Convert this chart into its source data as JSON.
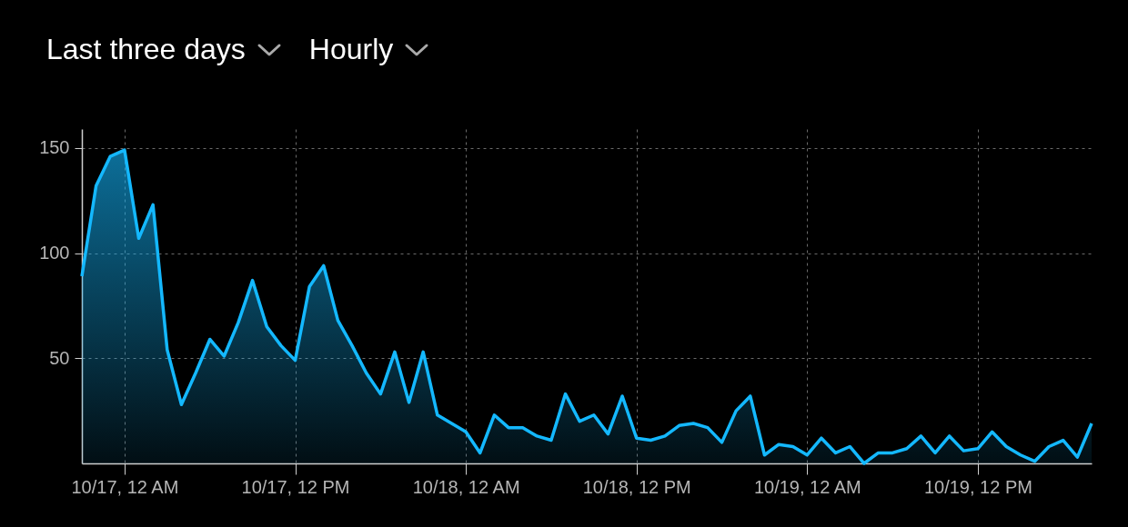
{
  "chart_data": {
    "type": "area",
    "title": "Last three days",
    "subtitle": "Hourly",
    "x": [
      "--10-16T21:00",
      "--10-16T22:00",
      "--10-16T23:00",
      "--10-17T00:00",
      "--10-17T01:00",
      "--10-17T02:00",
      "--10-17T03:00",
      "--10-17T04:00",
      "--10-17T05:00",
      "--10-17T06:00",
      "--10-17T07:00",
      "--10-17T08:00",
      "--10-17T09:00",
      "--10-17T10:00",
      "--10-17T11:00",
      "--10-17T12:00",
      "--10-17T13:00",
      "--10-17T14:00",
      "--10-17T15:00",
      "--10-17T16:00",
      "--10-17T17:00",
      "--10-17T18:00",
      "--10-17T19:00",
      "--10-17T20:00",
      "--10-17T21:00",
      "--10-17T22:00",
      "--10-17T23:00",
      "--10-18T00:00",
      "--10-18T01:00",
      "--10-18T02:00",
      "--10-18T03:00",
      "--10-18T04:00",
      "--10-18T05:00",
      "--10-18T06:00",
      "--10-18T07:00",
      "--10-18T08:00",
      "--10-18T09:00",
      "--10-18T10:00",
      "--10-18T11:00",
      "--10-18T12:00",
      "--10-18T13:00",
      "--10-18T14:00",
      "--10-18T15:00",
      "--10-18T16:00",
      "--10-18T17:00",
      "--10-18T18:00",
      "--10-18T19:00",
      "--10-18T20:00",
      "--10-18T21:00",
      "--10-18T22:00",
      "--10-18T23:00",
      "--10-19T00:00",
      "--10-19T01:00",
      "--10-19T02:00",
      "--10-19T03:00",
      "--10-19T04:00",
      "--10-19T05:00",
      "--10-19T06:00",
      "--10-19T07:00",
      "--10-19T08:00",
      "--10-19T09:00",
      "--10-19T10:00",
      "--10-19T11:00",
      "--10-19T12:00",
      "--10-19T13:00",
      "--10-19T14:00",
      "--10-19T15:00",
      "--10-19T16:00",
      "--10-19T17:00",
      "--10-19T18:00",
      "--10-19T19:00",
      "--10-19T20:00"
    ],
    "series": [
      {
        "color": "#14b8ff",
        "values": [
          89,
          132,
          146,
          149,
          107,
          123,
          54,
          28,
          43,
          59,
          51,
          67,
          87,
          65,
          56,
          49,
          84,
          94,
          68,
          56,
          43,
          33,
          53,
          29,
          53,
          23,
          19,
          15,
          5,
          23,
          17,
          17,
          13,
          11,
          33,
          20,
          23,
          14,
          32,
          12,
          11,
          13,
          18,
          19,
          17,
          10,
          25,
          32,
          4,
          9,
          8,
          4,
          12,
          5,
          8,
          0,
          5,
          5,
          7,
          13,
          5,
          13,
          6,
          7,
          15,
          8,
          4,
          1,
          8,
          11,
          3,
          19
        ]
      }
    ],
    "xlim": [
      "--10-16T21:00",
      "--10-19T20:00"
    ],
    "xticks": [
      {
        "value": "--10-17T00:00",
        "label": "10/17, 12 AM"
      },
      {
        "value": "--10-17T12:00",
        "label": "10/17, 12 PM"
      },
      {
        "value": "--10-18T00:00",
        "label": "10/18, 12 AM"
      },
      {
        "value": "--10-18T12:00",
        "label": "10/18, 12 PM"
      },
      {
        "value": "--10-19T00:00",
        "label": "10/19, 12 AM"
      },
      {
        "value": "--10-19T12:00",
        "label": "10/19, 12 PM"
      }
    ],
    "ylim": [
      0,
      159
    ],
    "yticks": [
      50,
      100,
      150
    ],
    "grid": true
  }
}
